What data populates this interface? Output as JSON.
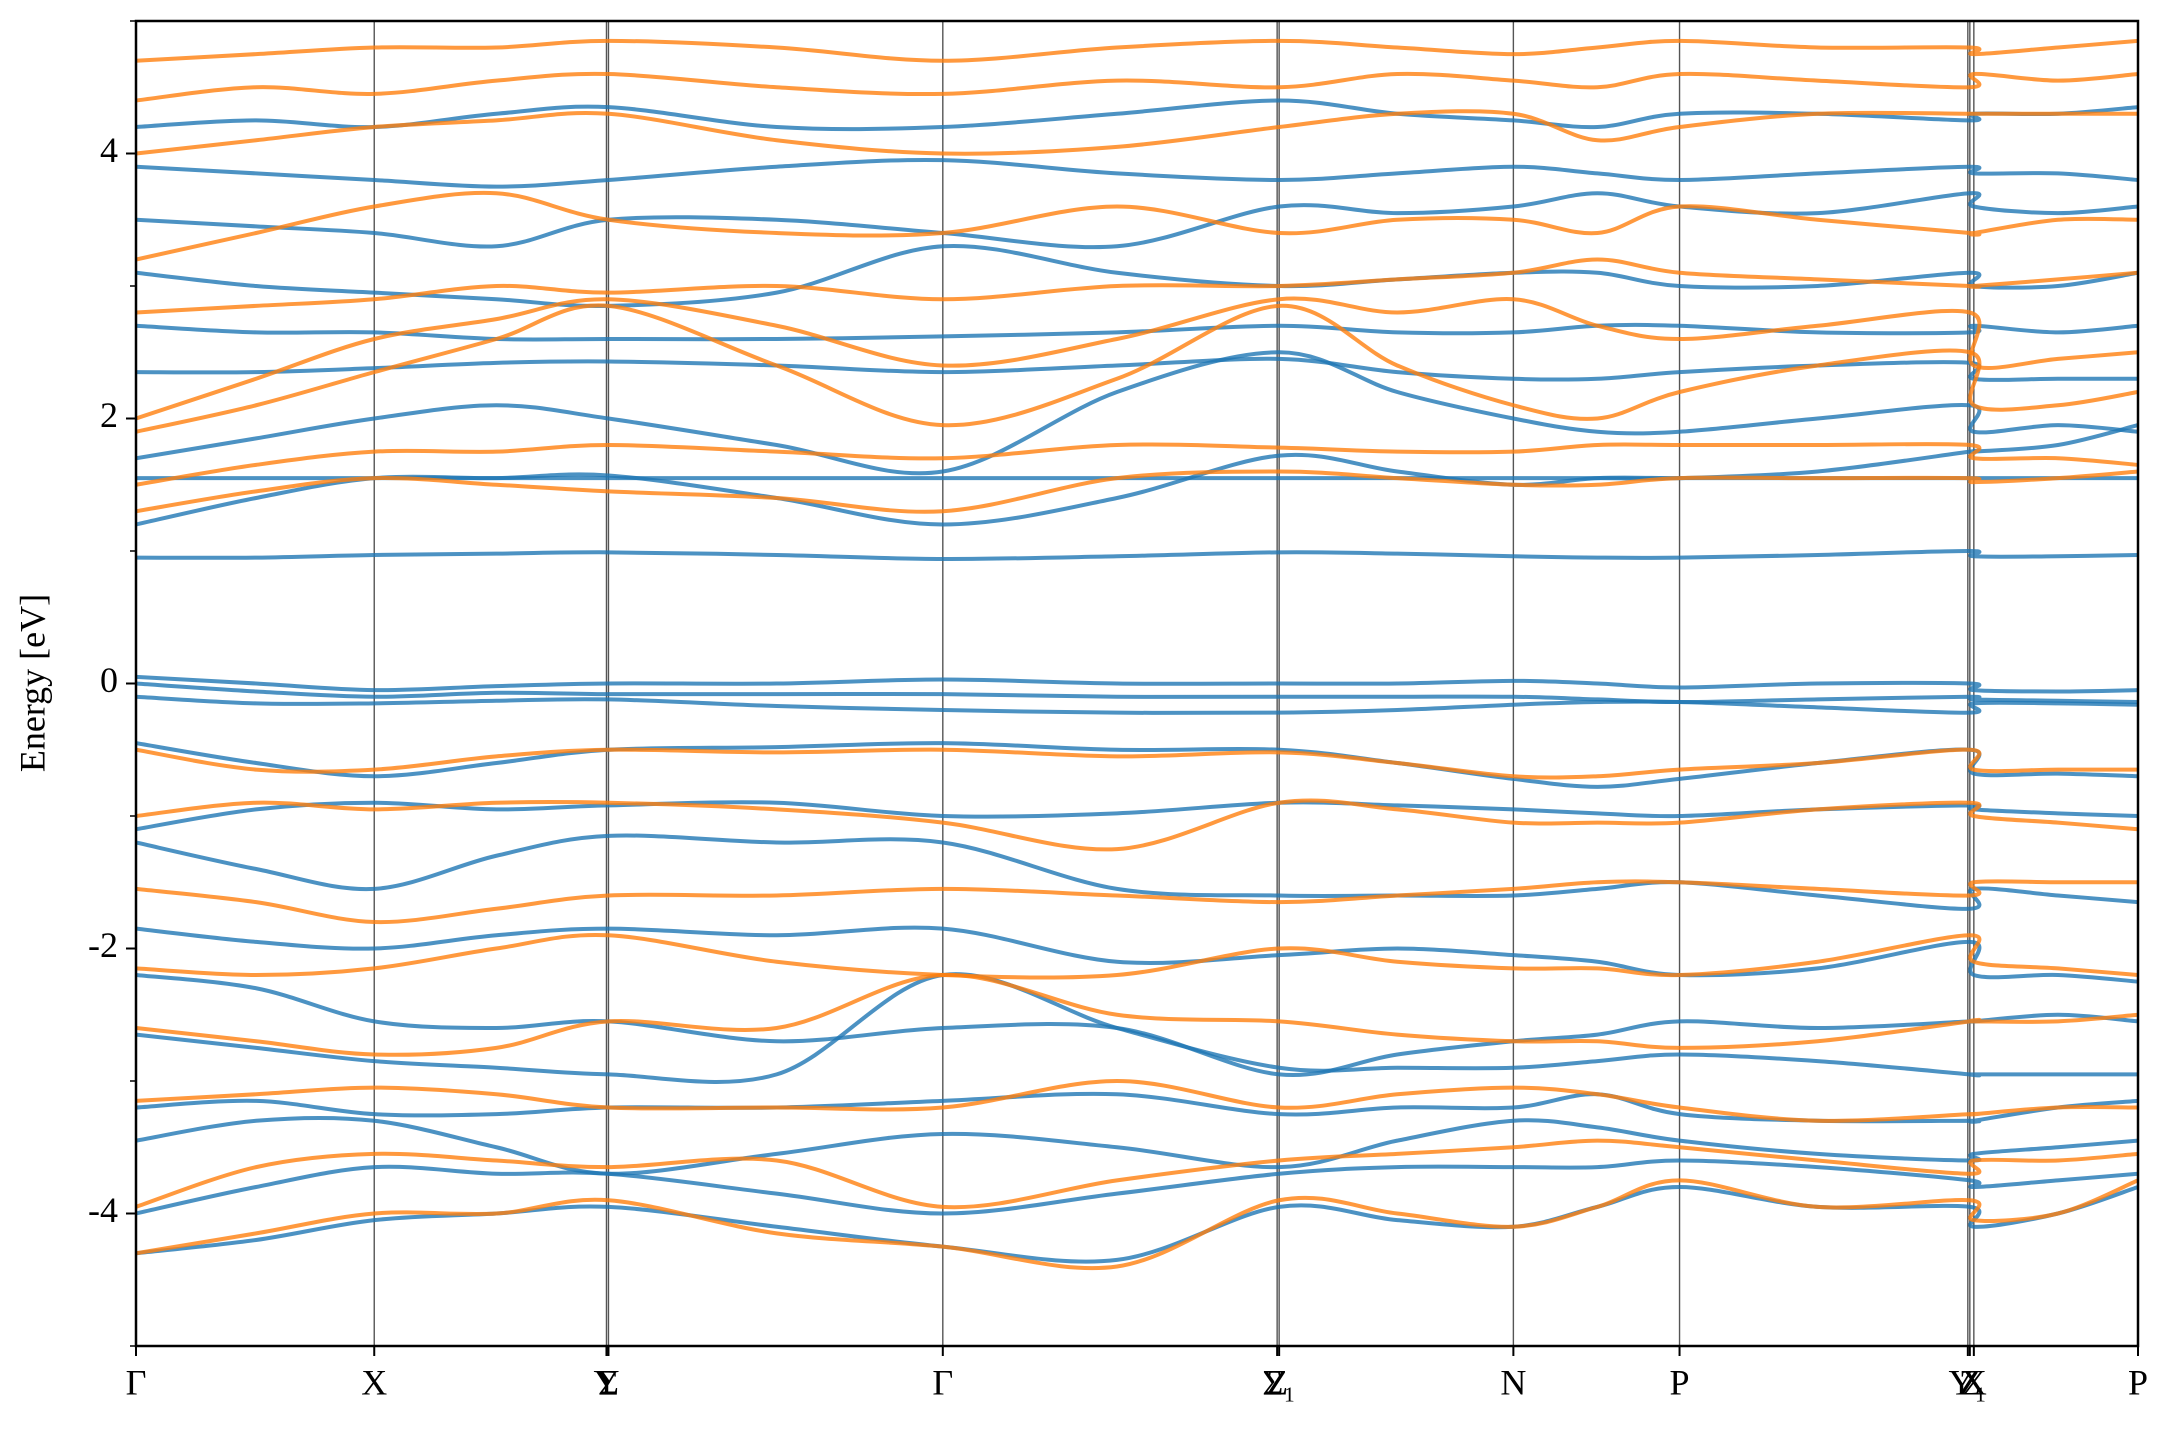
{
  "chart_data": {
    "type": "band-structure",
    "ylabel": "Energy [eV]",
    "x": [
      0,
      0.06,
      0.119,
      0.18,
      0.236,
      0.32,
      0.403,
      0.49,
      0.571,
      0.63,
      0.688,
      0.73,
      0.771,
      0.84,
      0.916,
      0.918,
      0.96,
      1.0
    ],
    "xlim": [
      0,
      1
    ],
    "xticks": [
      {
        "value": 0,
        "label": "Γ"
      },
      {
        "value": 0.119,
        "label": "X"
      },
      {
        "value": 0.235,
        "label": "Y"
      },
      {
        "value": 0.236,
        "label": "Σ"
      },
      {
        "value": 0.403,
        "label": "Γ"
      },
      {
        "value": 0.57,
        "label": "Z"
      },
      {
        "value": 0.571,
        "label": "Σ₁"
      },
      {
        "value": 0.688,
        "label": "N"
      },
      {
        "value": 0.771,
        "label": "P"
      },
      {
        "value": 0.915,
        "label": "Y₁"
      },
      {
        "value": 0.916,
        "label": "Z"
      },
      {
        "value": 0.918,
        "label": "X"
      },
      {
        "value": 1.0,
        "label": "P"
      }
    ],
    "ylim": [
      -5,
      5
    ],
    "yticks": [
      -4,
      -2,
      0,
      2,
      4
    ],
    "yminorticks": [
      -5,
      -3,
      -1,
      1,
      3,
      5
    ],
    "grid_x": true,
    "series": [
      {
        "color": "#1f77b4",
        "bands": [
          [
            0.95,
            0.95,
            0.97,
            0.98,
            0.99,
            0.97,
            0.94,
            0.96,
            0.99,
            0.98,
            0.96,
            0.95,
            0.95,
            0.97,
            1.0,
            0.96,
            0.96,
            0.97
          ],
          [
            0.05,
            0.0,
            -0.05,
            -0.02,
            0.0,
            0.0,
            0.03,
            0.0,
            0.0,
            0.0,
            0.02,
            0.0,
            -0.03,
            0.0,
            0.0,
            -0.05,
            -0.06,
            -0.05
          ],
          [
            0.0,
            -0.06,
            -0.1,
            -0.07,
            -0.08,
            -0.08,
            -0.08,
            -0.1,
            -0.1,
            -0.1,
            -0.1,
            -0.12,
            -0.14,
            -0.12,
            -0.1,
            -0.12,
            -0.13,
            -0.14
          ],
          [
            -0.1,
            -0.15,
            -0.15,
            -0.13,
            -0.12,
            -0.17,
            -0.2,
            -0.22,
            -0.22,
            -0.2,
            -0.16,
            -0.14,
            -0.14,
            -0.18,
            -0.22,
            -0.15,
            -0.15,
            -0.16
          ],
          [
            -0.45,
            -0.6,
            -0.7,
            -0.6,
            -0.5,
            -0.48,
            -0.45,
            -0.5,
            -0.5,
            -0.6,
            -0.72,
            -0.78,
            -0.72,
            -0.6,
            -0.5,
            -0.68,
            -0.68,
            -0.7
          ],
          [
            -1.1,
            -0.95,
            -0.9,
            -0.95,
            -0.92,
            -0.9,
            -1.0,
            -0.98,
            -0.9,
            -0.92,
            -0.95,
            -0.98,
            -1.0,
            -0.95,
            -0.92,
            -0.95,
            -0.98,
            -1.0
          ],
          [
            -1.2,
            -1.4,
            -1.55,
            -1.3,
            -1.15,
            -1.2,
            -1.2,
            -1.55,
            -1.6,
            -1.6,
            -1.6,
            -1.55,
            -1.5,
            -1.6,
            -1.7,
            -1.55,
            -1.6,
            -1.65
          ],
          [
            -1.85,
            -1.95,
            -2.0,
            -1.9,
            -1.85,
            -1.9,
            -1.85,
            -2.1,
            -2.05,
            -2.0,
            -2.05,
            -2.1,
            -2.2,
            -2.15,
            -1.95,
            -2.2,
            -2.2,
            -2.25
          ],
          [
            -2.2,
            -2.3,
            -2.55,
            -2.6,
            -2.55,
            -2.7,
            -2.6,
            -2.6,
            -2.95,
            -2.8,
            -2.7,
            -2.65,
            -2.55,
            -2.6,
            -2.55,
            -2.55,
            -2.5,
            -2.55
          ],
          [
            -2.65,
            -2.75,
            -2.85,
            -2.9,
            -2.95,
            -2.95,
            -2.2,
            -2.6,
            -2.9,
            -2.9,
            -2.9,
            -2.85,
            -2.8,
            -2.85,
            -2.95,
            -2.95,
            -2.95,
            -2.95
          ],
          [
            -3.2,
            -3.15,
            -3.25,
            -3.25,
            -3.2,
            -3.2,
            -3.15,
            -3.1,
            -3.25,
            -3.2,
            -3.2,
            -3.1,
            -3.25,
            -3.3,
            -3.3,
            -3.3,
            -3.2,
            -3.15
          ],
          [
            -3.45,
            -3.3,
            -3.3,
            -3.5,
            -3.7,
            -3.55,
            -3.4,
            -3.5,
            -3.65,
            -3.45,
            -3.3,
            -3.35,
            -3.45,
            -3.55,
            -3.6,
            -3.55,
            -3.5,
            -3.45
          ],
          [
            -4.0,
            -3.8,
            -3.65,
            -3.7,
            -3.7,
            -3.85,
            -4.0,
            -3.85,
            -3.7,
            -3.65,
            -3.65,
            -3.65,
            -3.6,
            -3.65,
            -3.75,
            -3.8,
            -3.75,
            -3.7
          ],
          [
            -4.3,
            -4.2,
            -4.05,
            -4.0,
            -3.95,
            -4.1,
            -4.25,
            -4.35,
            -3.95,
            -4.05,
            -4.1,
            -3.95,
            -3.8,
            -3.95,
            -3.95,
            -4.1,
            -4.0,
            -3.8
          ],
          [
            1.2,
            1.4,
            1.55,
            1.55,
            1.57,
            1.4,
            1.2,
            1.4,
            1.72,
            1.6,
            1.5,
            1.55,
            1.55,
            1.55,
            1.55,
            1.55,
            1.55,
            1.55
          ],
          [
            1.55,
            1.55,
            1.55,
            1.55,
            1.55,
            1.55,
            1.55,
            1.55,
            1.55,
            1.55,
            1.55,
            1.55,
            1.55,
            1.6,
            1.75,
            1.75,
            1.8,
            1.95
          ],
          [
            1.7,
            1.85,
            2.0,
            2.1,
            2.0,
            1.8,
            1.6,
            2.2,
            2.5,
            2.2,
            2.0,
            1.9,
            1.9,
            2.0,
            2.1,
            1.9,
            1.95,
            1.9
          ],
          [
            2.35,
            2.35,
            2.38,
            2.42,
            2.43,
            2.4,
            2.35,
            2.4,
            2.45,
            2.35,
            2.3,
            2.3,
            2.35,
            2.4,
            2.42,
            2.3,
            2.3,
            2.3
          ],
          [
            2.7,
            2.65,
            2.65,
            2.6,
            2.6,
            2.6,
            2.62,
            2.65,
            2.7,
            2.65,
            2.65,
            2.7,
            2.7,
            2.65,
            2.65,
            2.7,
            2.65,
            2.7
          ],
          [
            3.1,
            3.0,
            2.95,
            2.9,
            2.85,
            2.95,
            3.3,
            3.1,
            3.0,
            3.05,
            3.1,
            3.1,
            3.0,
            3.0,
            3.1,
            3.0,
            3.0,
            3.1
          ],
          [
            3.5,
            3.45,
            3.4,
            3.3,
            3.5,
            3.5,
            3.4,
            3.3,
            3.6,
            3.55,
            3.6,
            3.7,
            3.6,
            3.55,
            3.7,
            3.6,
            3.55,
            3.6
          ],
          [
            3.9,
            3.85,
            3.8,
            3.75,
            3.8,
            3.9,
            3.95,
            3.85,
            3.8,
            3.85,
            3.9,
            3.85,
            3.8,
            3.85,
            3.9,
            3.85,
            3.85,
            3.8
          ],
          [
            4.2,
            4.25,
            4.2,
            4.3,
            4.35,
            4.2,
            4.2,
            4.3,
            4.4,
            4.3,
            4.25,
            4.2,
            4.3,
            4.3,
            4.25,
            4.3,
            4.3,
            4.35
          ]
        ]
      },
      {
        "color": "#ff7f0e",
        "bands": [
          [
            -0.5,
            -0.65,
            -0.65,
            -0.55,
            -0.5,
            -0.52,
            -0.5,
            -0.55,
            -0.52,
            -0.6,
            -0.7,
            -0.7,
            -0.65,
            -0.6,
            -0.5,
            -0.65,
            -0.65,
            -0.65
          ],
          [
            -1.0,
            -0.9,
            -0.95,
            -0.9,
            -0.9,
            -0.95,
            -1.05,
            -1.25,
            -0.9,
            -0.95,
            -1.05,
            -1.05,
            -1.05,
            -0.95,
            -0.9,
            -1.0,
            -1.05,
            -1.1
          ],
          [
            -1.55,
            -1.65,
            -1.8,
            -1.7,
            -1.6,
            -1.6,
            -1.55,
            -1.6,
            -1.65,
            -1.6,
            -1.55,
            -1.5,
            -1.5,
            -1.55,
            -1.6,
            -1.5,
            -1.5,
            -1.5
          ],
          [
            -2.15,
            -2.2,
            -2.15,
            -2.0,
            -1.9,
            -2.1,
            -2.2,
            -2.2,
            -2.0,
            -2.1,
            -2.15,
            -2.15,
            -2.2,
            -2.1,
            -1.9,
            -2.1,
            -2.15,
            -2.2
          ],
          [
            -2.6,
            -2.7,
            -2.8,
            -2.75,
            -2.55,
            -2.6,
            -2.2,
            -2.5,
            -2.55,
            -2.65,
            -2.7,
            -2.7,
            -2.75,
            -2.7,
            -2.55,
            -2.55,
            -2.55,
            -2.5
          ],
          [
            -3.15,
            -3.1,
            -3.05,
            -3.1,
            -3.2,
            -3.2,
            -3.2,
            -3.0,
            -3.2,
            -3.1,
            -3.05,
            -3.1,
            -3.2,
            -3.3,
            -3.25,
            -3.25,
            -3.2,
            -3.2
          ],
          [
            -3.95,
            -3.65,
            -3.55,
            -3.6,
            -3.65,
            -3.6,
            -3.95,
            -3.75,
            -3.6,
            -3.55,
            -3.5,
            -3.45,
            -3.5,
            -3.6,
            -3.7,
            -3.6,
            -3.6,
            -3.55
          ],
          [
            -4.3,
            -4.15,
            -4.0,
            -4.0,
            -3.9,
            -4.15,
            -4.25,
            -4.4,
            -3.9,
            -4.0,
            -4.1,
            -3.95,
            -3.75,
            -3.95,
            -3.9,
            -4.05,
            -4.0,
            -3.75
          ],
          [
            1.3,
            1.45,
            1.55,
            1.5,
            1.45,
            1.4,
            1.3,
            1.55,
            1.6,
            1.55,
            1.5,
            1.5,
            1.55,
            1.55,
            1.55,
            1.52,
            1.55,
            1.6
          ],
          [
            1.5,
            1.65,
            1.75,
            1.75,
            1.8,
            1.75,
            1.7,
            1.8,
            1.78,
            1.75,
            1.75,
            1.8,
            1.8,
            1.8,
            1.8,
            1.7,
            1.7,
            1.65
          ],
          [
            1.9,
            2.1,
            2.35,
            2.6,
            2.85,
            2.4,
            1.95,
            2.3,
            2.85,
            2.4,
            2.1,
            2.0,
            2.2,
            2.4,
            2.5,
            2.1,
            2.1,
            2.2
          ],
          [
            2.0,
            2.3,
            2.6,
            2.75,
            2.9,
            2.7,
            2.4,
            2.6,
            2.9,
            2.8,
            2.9,
            2.7,
            2.6,
            2.7,
            2.8,
            2.4,
            2.45,
            2.5
          ],
          [
            2.8,
            2.85,
            2.9,
            3.0,
            2.95,
            3.0,
            2.9,
            3.0,
            3.0,
            3.05,
            3.1,
            3.2,
            3.1,
            3.05,
            3.0,
            3.0,
            3.05,
            3.1
          ],
          [
            3.2,
            3.4,
            3.6,
            3.7,
            3.5,
            3.4,
            3.4,
            3.6,
            3.4,
            3.5,
            3.5,
            3.4,
            3.6,
            3.5,
            3.4,
            3.4,
            3.5,
            3.5
          ],
          [
            4.0,
            4.1,
            4.2,
            4.25,
            4.3,
            4.1,
            4.0,
            4.05,
            4.2,
            4.3,
            4.3,
            4.1,
            4.2,
            4.3,
            4.3,
            4.3,
            4.3,
            4.3
          ],
          [
            4.4,
            4.5,
            4.45,
            4.55,
            4.6,
            4.5,
            4.45,
            4.55,
            4.5,
            4.6,
            4.55,
            4.5,
            4.6,
            4.55,
            4.5,
            4.6,
            4.55,
            4.6
          ],
          [
            4.7,
            4.75,
            4.8,
            4.8,
            4.85,
            4.8,
            4.7,
            4.8,
            4.85,
            4.8,
            4.75,
            4.8,
            4.85,
            4.8,
            4.8,
            4.75,
            4.8,
            4.85
          ]
        ]
      }
    ]
  }
}
